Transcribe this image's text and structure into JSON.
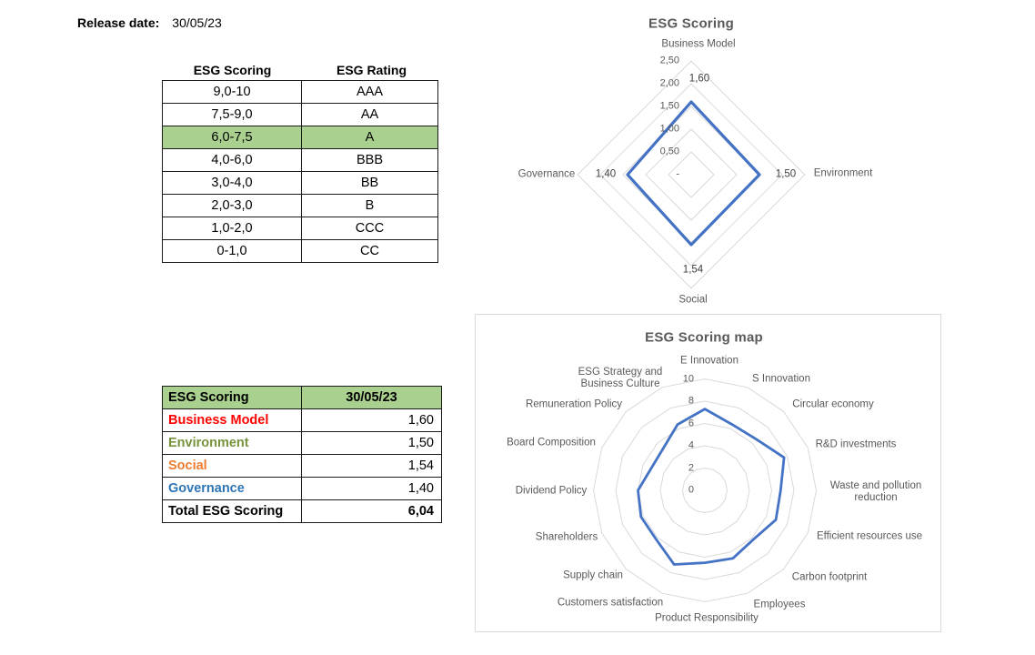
{
  "release": {
    "label": "Release date:",
    "value": "30/05/23"
  },
  "rating_table": {
    "headers": [
      "ESG Scoring",
      "ESG Rating"
    ],
    "rows": [
      [
        "9,0-10",
        "AAA"
      ],
      [
        "7,5-9,0",
        "AA"
      ],
      [
        "6,0-7,5",
        "A"
      ],
      [
        "4,0-6,0",
        "BBB"
      ],
      [
        "3,0-4,0",
        "BB"
      ],
      [
        "2,0-3,0",
        "B"
      ],
      [
        "1,0-2,0",
        "CCC"
      ],
      [
        "0-1,0",
        "CC"
      ]
    ],
    "highlight_row_index": 2,
    "highlight_color": "#A9D08E"
  },
  "scores_table": {
    "header_bg": "#A9D08E",
    "header": [
      "ESG Scoring",
      "30/05/23"
    ],
    "rows": [
      {
        "label": "Business Model",
        "value": "1,60",
        "color": "#FF0000",
        "bold_value": false
      },
      {
        "label": "Environment",
        "value": "1,50",
        "color": "#76933C",
        "bold_value": false
      },
      {
        "label": "Social",
        "value": "1,54",
        "color": "#ED7D31",
        "bold_value": false
      },
      {
        "label": "Governance",
        "value": "1,40",
        "color": "#2E75B6",
        "bold_value": false
      },
      {
        "label": "Total ESG Scoring",
        "value": "6,04",
        "color": "#000000",
        "bold_value": true
      }
    ]
  },
  "chart_data": [
    {
      "type": "radar",
      "title": "ESG Scoring",
      "categories": [
        "Business Model",
        "Environment",
        "Social",
        "Governance"
      ],
      "values": [
        1.6,
        1.5,
        1.54,
        1.4
      ],
      "data_labels": [
        "1,60",
        "1,50",
        "1,54",
        "1,40"
      ],
      "axis_ticks": [
        {
          "label": "2,50",
          "value": 2.5
        },
        {
          "label": "2,00",
          "value": 2.0
        },
        {
          "label": "1,50",
          "value": 1.5
        },
        {
          "label": "1,00",
          "value": 1.0
        },
        {
          "label": "0,50",
          "value": 0.5
        },
        {
          "label": "-",
          "value": 0
        }
      ],
      "rlim": [
        0,
        2.5
      ],
      "grid_interval": 0.5,
      "grid": true,
      "legend": "none",
      "line_color": "#4472C4",
      "grid_color": "#D9D9D9"
    },
    {
      "type": "radar",
      "title": "ESG Scoring map",
      "categories": [
        "E Innovation",
        "S Innovation",
        "Circular economy",
        "R&D investments",
        "Waste and pollution reduction",
        "Efficient resources use",
        "Carbon footprint",
        "Employees",
        "Product Responsibility",
        "Customers satisfaction",
        "Supply chain",
        "Shareholders",
        "Dividend Policy",
        "Board Composition",
        "Remuneration Policy",
        "ESG Strategy and Business Culture"
      ],
      "values": [
        7.3,
        6.4,
        6.5,
        7.7,
        6.8,
        6.9,
        6.2,
        6.6,
        6.5,
        7.2,
        6.2,
        6.2,
        6.0,
        5.2,
        5.3,
        6.4
      ],
      "axis_ticks": [
        {
          "label": "10",
          "value": 10
        },
        {
          "label": "8",
          "value": 8
        },
        {
          "label": "6",
          "value": 6
        },
        {
          "label": "4",
          "value": 4
        },
        {
          "label": "2",
          "value": 2
        },
        {
          "label": "0",
          "value": 0
        }
      ],
      "rlim": [
        0,
        10
      ],
      "grid_interval": 2,
      "grid": true,
      "legend": "none",
      "line_color": "#4472C4",
      "grid_color": "#D9D9D9"
    }
  ]
}
